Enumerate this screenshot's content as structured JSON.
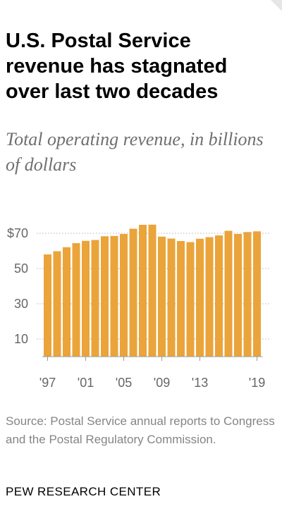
{
  "title": "U.S. Postal Service revenue has stagnated over last two decades",
  "subtitle": "Total operating revenue, in billions of dollars",
  "source": "Source: Postal Service annual reports to Congress and the Postal Regulatory Commission.",
  "brand": "PEW RESEARCH CENTER",
  "colors": {
    "bar": "#eaa43a",
    "grid": "#b3b3b3",
    "axis_text": "#666666"
  },
  "chart_data": {
    "type": "bar",
    "title": "U.S. Postal Service revenue has stagnated over last two decades",
    "subtitle": "Total operating revenue, in billions of dollars",
    "xlabel": "",
    "ylabel": "",
    "ylim": [
      0,
      75
    ],
    "grid": true,
    "gridlines": [
      10,
      30,
      50,
      70
    ],
    "y_tick_labels": [
      "10",
      "30",
      "50",
      "$70"
    ],
    "x_tick_labels": [
      {
        "year": 1997,
        "label": "'97"
      },
      {
        "year": 2001,
        "label": "'01"
      },
      {
        "year": 2005,
        "label": "'05"
      },
      {
        "year": 2009,
        "label": "'09"
      },
      {
        "year": 2013,
        "label": "'13"
      },
      {
        "year": 2019,
        "label": "'19"
      }
    ],
    "categories": [
      1997,
      1998,
      1999,
      2000,
      2001,
      2002,
      2003,
      2004,
      2005,
      2006,
      2007,
      2008,
      2009,
      2010,
      2011,
      2012,
      2013,
      2014,
      2015,
      2016,
      2017,
      2018,
      2019
    ],
    "values": [
      58.0,
      59.8,
      62.1,
      64.4,
      65.7,
      66.2,
      68.3,
      68.5,
      69.6,
      72.6,
      74.8,
      74.9,
      68.1,
      67.0,
      65.6,
      65.0,
      66.9,
      67.8,
      68.8,
      71.4,
      69.6,
      70.7,
      71.1
    ]
  }
}
